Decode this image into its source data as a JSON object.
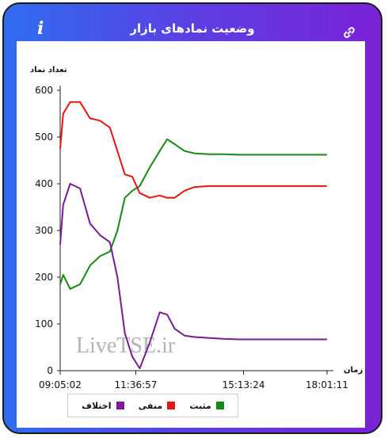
{
  "header": {
    "title": "وضعیت نمادهای بازار",
    "info_icon": "info-icon",
    "link_icon": "link-icon"
  },
  "watermark": "LiveTSE.ir",
  "chart_data": {
    "type": "line",
    "title": "",
    "ylabel": "تعداد نماد",
    "xlabel": "زمان",
    "ylim": [
      0,
      600
    ],
    "yticks": [
      0,
      100,
      200,
      300,
      400,
      500,
      600
    ],
    "xticks": [
      "09:05:02",
      "11:36:57",
      "15:13:24",
      "18:01:11"
    ],
    "grid": false,
    "legend_position": "bottom",
    "series": [
      {
        "name": "مثبت",
        "color": "#138a13",
        "x": [
          "09:05",
          "09:11",
          "09:25",
          "09:45",
          "10:05",
          "10:25",
          "10:45",
          "11:00",
          "11:15",
          "11:30",
          "11:45",
          "12:05",
          "12:25",
          "12:40",
          "12:55",
          "13:15",
          "13:35",
          "14:05",
          "14:35",
          "15:05",
          "15:35",
          "16:05",
          "16:35",
          "17:05",
          "17:35",
          "18:01"
        ],
        "values": [
          185,
          205,
          175,
          185,
          225,
          245,
          255,
          300,
          370,
          385,
          395,
          435,
          470,
          495,
          485,
          470,
          465,
          463,
          463,
          462,
          462,
          462,
          462,
          462,
          462,
          462
        ]
      },
      {
        "name": "منفی",
        "color": "#e8140f",
        "x": [
          "09:05",
          "09:11",
          "09:25",
          "09:45",
          "10:05",
          "10:25",
          "10:45",
          "11:00",
          "11:15",
          "11:30",
          "11:45",
          "12:05",
          "12:25",
          "12:40",
          "12:55",
          "13:15",
          "13:35",
          "14:05",
          "14:35",
          "15:05",
          "15:35",
          "16:05",
          "16:35",
          "17:05",
          "17:35",
          "18:01"
        ],
        "values": [
          475,
          550,
          575,
          575,
          540,
          535,
          520,
          470,
          420,
          415,
          380,
          370,
          375,
          370,
          370,
          385,
          393,
          395,
          395,
          395,
          395,
          395,
          395,
          395,
          395,
          395
        ]
      },
      {
        "name": "اختلاف",
        "color": "#7a1a94",
        "x": [
          "09:05",
          "09:11",
          "09:25",
          "09:45",
          "10:05",
          "10:25",
          "10:45",
          "11:00",
          "11:15",
          "11:30",
          "11:45",
          "12:05",
          "12:25",
          "12:40",
          "12:55",
          "13:15",
          "13:35",
          "14:05",
          "14:35",
          "15:05",
          "15:35",
          "16:05",
          "16:35",
          "17:05",
          "17:35",
          "18:01"
        ],
        "values": [
          270,
          355,
          400,
          390,
          315,
          290,
          275,
          200,
          80,
          30,
          5,
          60,
          125,
          120,
          90,
          75,
          72,
          70,
          68,
          67,
          67,
          67,
          67,
          67,
          67,
          67
        ]
      }
    ]
  }
}
